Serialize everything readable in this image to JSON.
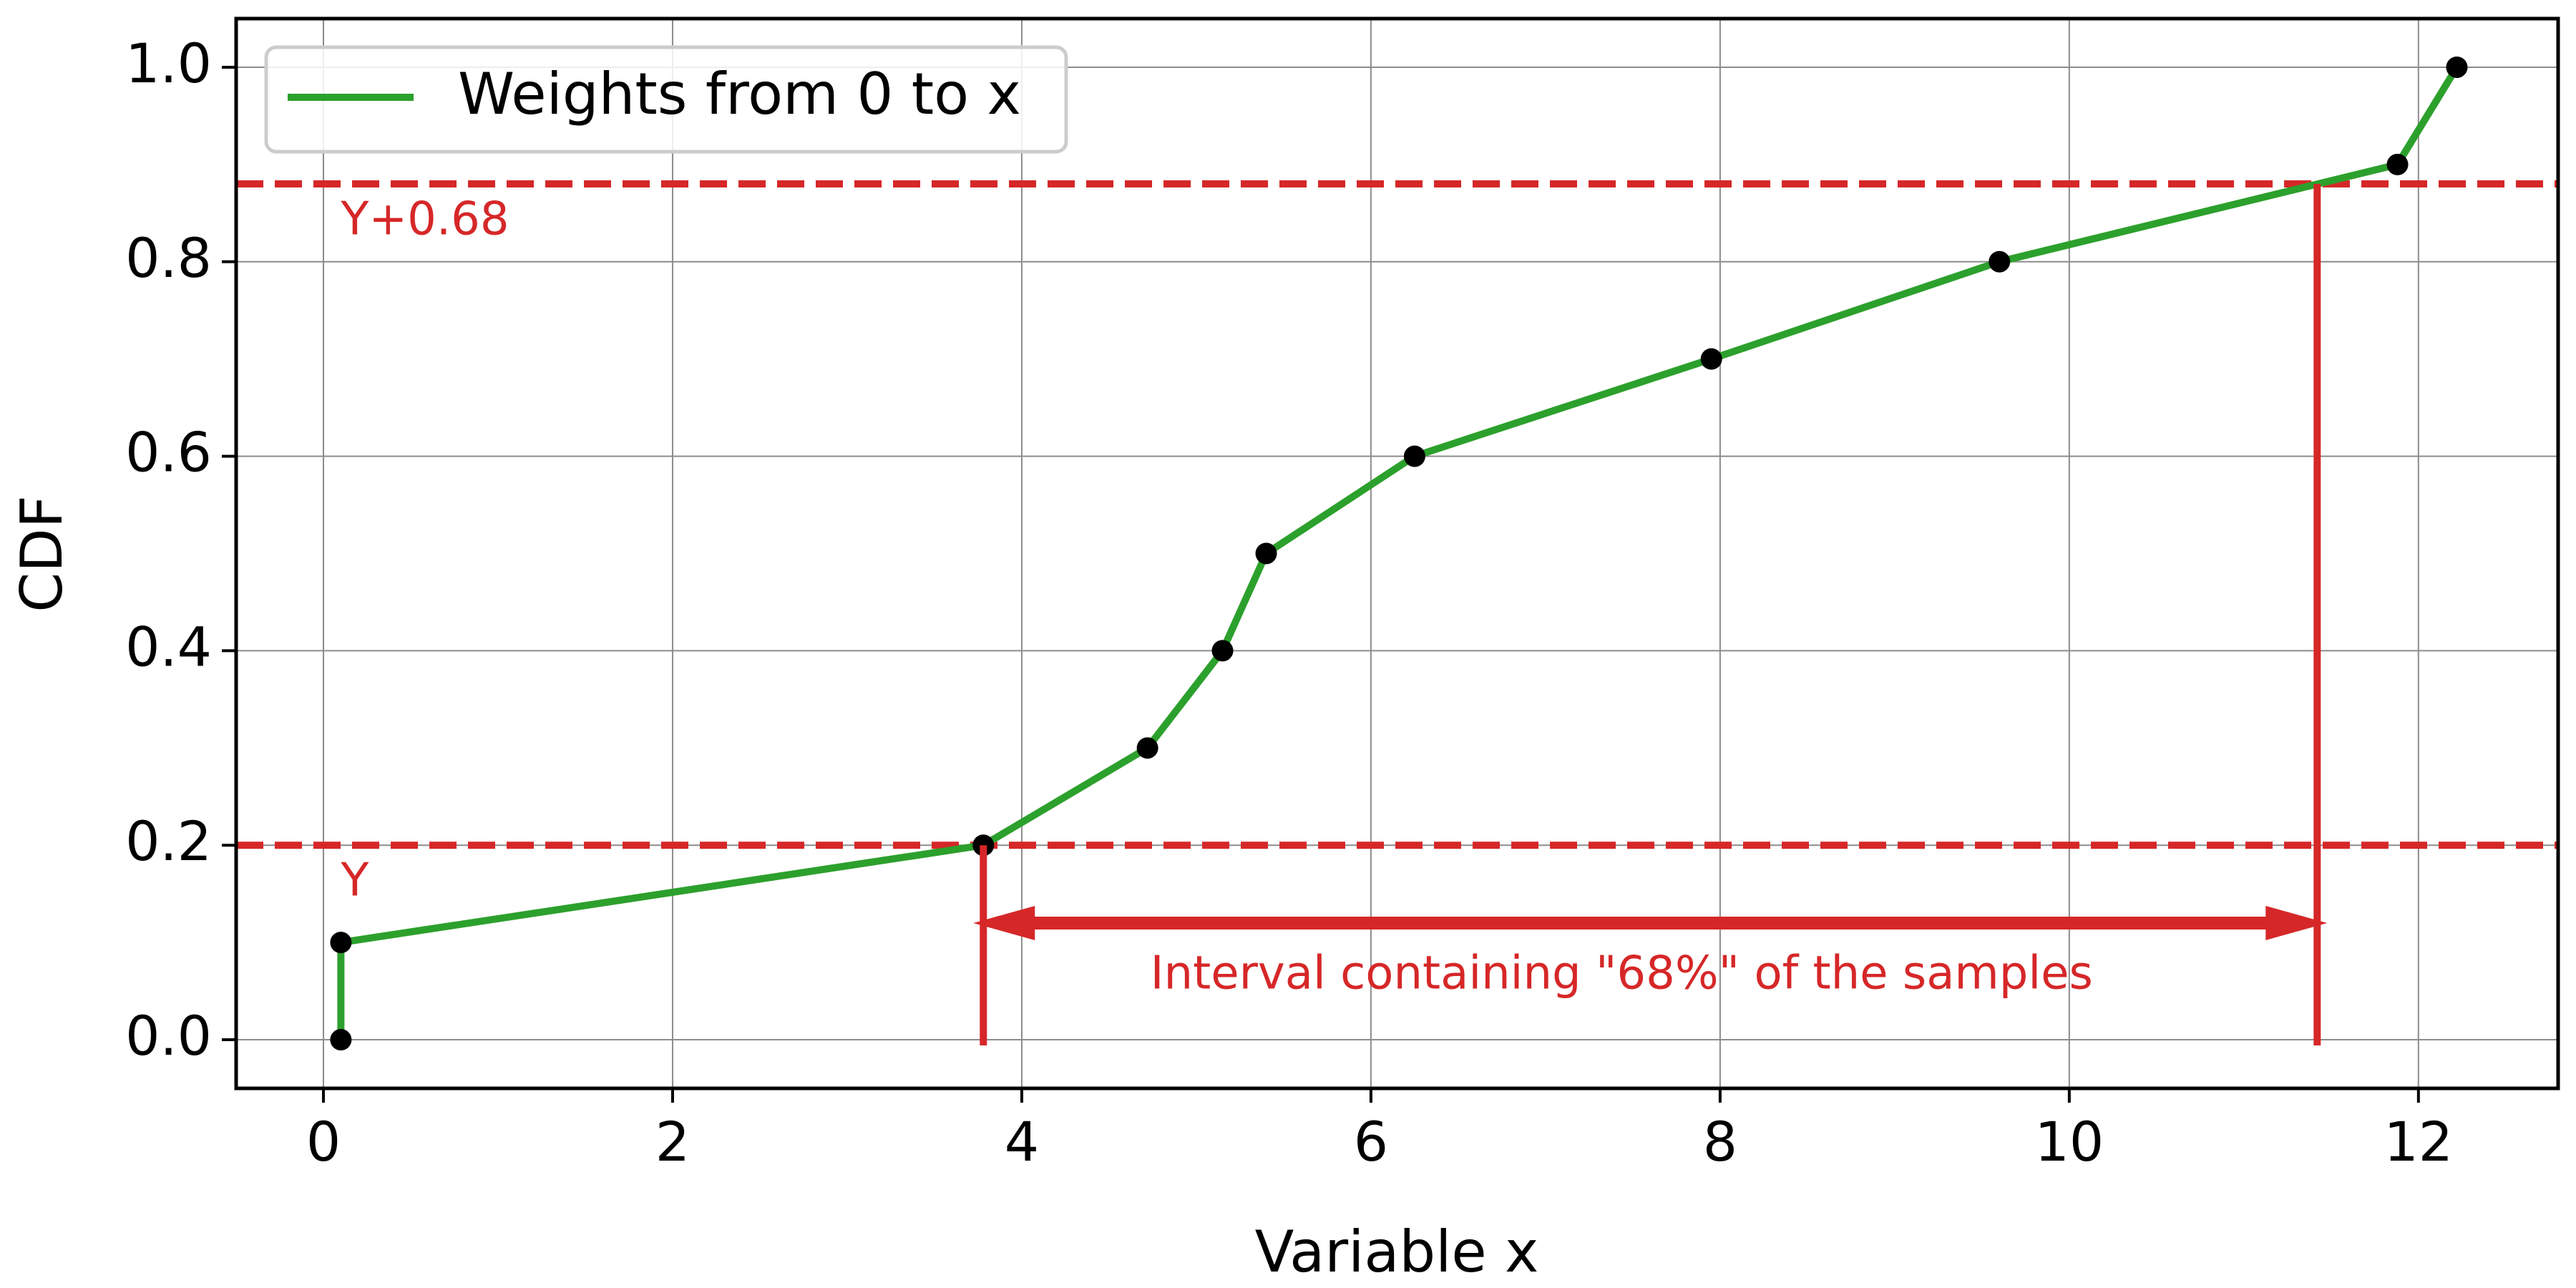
{
  "chart_data": {
    "type": "line",
    "xlabel": "Variable x",
    "ylabel": "CDF",
    "xlim": [
      -0.5,
      12.8
    ],
    "ylim": [
      -0.05,
      1.05
    ],
    "xticks": [
      "0",
      "2",
      "4",
      "6",
      "8",
      "10",
      "12"
    ],
    "yticks": [
      "0.0",
      "0.2",
      "0.4",
      "0.6",
      "0.8",
      "1.0"
    ],
    "grid": true,
    "legend": {
      "placement": "top-left",
      "entries": [
        "Weights from 0 to x"
      ]
    },
    "series": [
      {
        "name": "Weights from 0 to x",
        "color": "#2ca02c",
        "marker_color": "#000000",
        "x": [
          0.1,
          0.1,
          3.78,
          4.72,
          5.15,
          5.4,
          6.25,
          7.95,
          9.6,
          11.88,
          12.22
        ],
        "y": [
          0.0,
          0.1,
          0.2,
          0.3,
          0.4,
          0.5,
          0.6,
          0.7,
          0.8,
          0.9,
          1.0
        ]
      }
    ],
    "reference_lines": {
      "color": "#d62728",
      "lower": {
        "y": 0.2,
        "label": "Y"
      },
      "upper": {
        "y": 0.88,
        "label": "Y+0.68"
      }
    },
    "interval": {
      "x_start": 3.78,
      "x_end": 11.42,
      "arrow_y": 0.12,
      "label": "Interval containing \"68%\" of the samples"
    }
  }
}
